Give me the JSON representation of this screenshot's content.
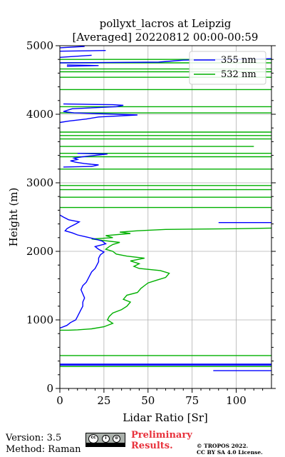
{
  "chart_data": {
    "type": "line",
    "title": "pollyxt_lacros at Leipzig",
    "subtitle": "[Averaged] 20220812 00:00-00:59",
    "xlabel": "Lidar Ratio [Sr]",
    "ylabel": "Height (m)",
    "xlim": [
      0,
      120
    ],
    "ylim": [
      0,
      5000
    ],
    "x_ticks": [
      0,
      25,
      50,
      75,
      100
    ],
    "x_tick_labels": [
      "0",
      "25",
      "50",
      "75",
      "100"
    ],
    "y_ticks": [
      0,
      1000,
      2000,
      3000,
      4000,
      5000
    ],
    "y_tick_labels": [
      "0",
      "1000",
      "2000",
      "3000",
      "4000",
      "5000"
    ],
    "grid": true,
    "legend_position": "top-right",
    "series": [
      {
        "name": "355 nm",
        "color": "#0000ff",
        "points": [
          [
            0,
            880
          ],
          [
            4,
            920
          ],
          [
            6,
            960
          ],
          [
            9,
            1000
          ],
          [
            10,
            1050
          ],
          [
            11,
            1100
          ],
          [
            12,
            1150
          ],
          [
            13,
            1200
          ],
          [
            13,
            1260
          ],
          [
            14,
            1320
          ],
          [
            13,
            1380
          ],
          [
            12,
            1440
          ],
          [
            13,
            1500
          ],
          [
            15,
            1550
          ],
          [
            16,
            1600
          ],
          [
            17,
            1650
          ],
          [
            18,
            1700
          ],
          [
            20,
            1750
          ],
          [
            21,
            1800
          ],
          [
            22,
            1850
          ],
          [
            22,
            1900
          ],
          [
            23,
            1950
          ],
          [
            25,
            1990
          ],
          [
            22,
            2030
          ],
          [
            20,
            2070
          ],
          [
            26,
            2110
          ],
          [
            24,
            2150
          ],
          [
            20,
            2180
          ],
          [
            15,
            2210
          ],
          [
            10,
            2240
          ],
          [
            7,
            2270
          ],
          [
            3,
            2300
          ],
          [
            4,
            2330
          ],
          [
            6,
            2360
          ],
          [
            9,
            2400
          ],
          [
            11,
            2430
          ],
          [
            5,
            2460
          ],
          [
            2,
            2500
          ],
          [
            0,
            2530
          ],
          [
            null,
            null
          ],
          [
            2,
            3230
          ],
          [
            18,
            3240
          ],
          [
            22,
            3260
          ],
          [
            14,
            3280
          ],
          [
            9,
            3300
          ],
          [
            6,
            3320
          ],
          [
            10,
            3340
          ],
          [
            8,
            3360
          ],
          [
            13,
            3380
          ],
          [
            27,
            3420
          ],
          [
            10,
            3430
          ],
          [
            null,
            null
          ],
          [
            0,
            3880
          ],
          [
            5,
            3900
          ],
          [
            15,
            3930
          ],
          [
            22,
            3960
          ],
          [
            44,
            3990
          ],
          [
            20,
            4010
          ],
          [
            8,
            4020
          ],
          [
            2,
            4040
          ],
          [
            7,
            4080
          ],
          [
            32,
            4110
          ],
          [
            36,
            4130
          ],
          [
            30,
            4140
          ],
          [
            2,
            4150
          ],
          [
            null,
            null
          ],
          [
            4,
            4700
          ],
          [
            22,
            4710
          ],
          [
            4,
            4720
          ],
          [
            null,
            null
          ],
          [
            0,
            4750
          ],
          [
            56,
            4760
          ],
          [
            70,
            4790
          ],
          [
            100,
            4800
          ],
          [
            120,
            4810
          ],
          [
            null,
            null
          ],
          [
            0,
            4830
          ],
          [
            18,
            4860
          ],
          [
            null,
            null
          ],
          [
            0,
            4920
          ],
          [
            26,
            4930
          ],
          [
            null,
            null
          ],
          [
            0,
            4970
          ],
          [
            14,
            4990
          ]
        ]
      },
      {
        "name": "532 nm",
        "color": "#00b000",
        "points": [
          [
            0,
            850
          ],
          [
            5,
            850
          ],
          [
            10,
            855
          ],
          [
            18,
            870
          ],
          [
            25,
            900
          ],
          [
            30,
            950
          ],
          [
            27,
            1000
          ],
          [
            28,
            1050
          ],
          [
            30,
            1100
          ],
          [
            35,
            1150
          ],
          [
            38,
            1200
          ],
          [
            40,
            1260
          ],
          [
            36,
            1300
          ],
          [
            38,
            1360
          ],
          [
            44,
            1400
          ],
          [
            46,
            1460
          ],
          [
            48,
            1500
          ],
          [
            50,
            1540
          ],
          [
            55,
            1580
          ],
          [
            60,
            1620
          ],
          [
            62,
            1680
          ],
          [
            57,
            1720
          ],
          [
            45,
            1750
          ],
          [
            42,
            1780
          ],
          [
            45,
            1820
          ],
          [
            40,
            1860
          ],
          [
            48,
            1900
          ],
          [
            38,
            1930
          ],
          [
            32,
            1960
          ],
          [
            30,
            2000
          ],
          [
            26,
            2030
          ],
          [
            28,
            2070
          ],
          [
            30,
            2100
          ],
          [
            34,
            2130
          ],
          [
            24,
            2160
          ],
          [
            18,
            2180
          ],
          [
            30,
            2200
          ],
          [
            26,
            2230
          ],
          [
            40,
            2260
          ],
          [
            34,
            2280
          ],
          [
            44,
            2300
          ],
          [
            60,
            2320
          ],
          [
            100,
            2330
          ],
          [
            120,
            2340
          ],
          [
            null,
            null
          ],
          [
            0,
            2640
          ],
          [
            120,
            2640
          ],
          [
            null,
            null
          ],
          [
            0,
            2790
          ],
          [
            120,
            2790
          ],
          [
            null,
            null
          ],
          [
            0,
            2900
          ],
          [
            120,
            2900
          ],
          [
            null,
            null
          ],
          [
            0,
            2960
          ],
          [
            120,
            2960
          ],
          [
            null,
            null
          ],
          [
            0,
            3200
          ],
          [
            120,
            3200
          ],
          [
            null,
            null
          ],
          [
            0,
            3380
          ],
          [
            120,
            3380
          ],
          [
            null,
            null
          ],
          [
            0,
            3430
          ],
          [
            120,
            3430
          ],
          [
            null,
            null
          ],
          [
            0,
            3530
          ],
          [
            110,
            3530
          ],
          [
            null,
            null
          ],
          [
            0,
            3640
          ],
          [
            120,
            3640
          ],
          [
            null,
            null
          ],
          [
            0,
            3690
          ],
          [
            120,
            3690
          ],
          [
            null,
            null
          ],
          [
            0,
            3740
          ],
          [
            120,
            3740
          ],
          [
            null,
            null
          ],
          [
            0,
            4020
          ],
          [
            120,
            4020
          ],
          [
            null,
            null
          ],
          [
            0,
            4110
          ],
          [
            120,
            4110
          ],
          [
            null,
            null
          ],
          [
            0,
            4360
          ],
          [
            120,
            4360
          ],
          [
            null,
            null
          ],
          [
            0,
            4540
          ],
          [
            120,
            4540
          ],
          [
            null,
            null
          ],
          [
            0,
            4620
          ],
          [
            120,
            4620
          ],
          [
            null,
            null
          ],
          [
            0,
            4660
          ],
          [
            120,
            4660
          ],
          [
            null,
            null
          ],
          [
            0,
            4750
          ],
          [
            120,
            4750
          ],
          [
            null,
            null
          ],
          [
            0,
            4800
          ],
          [
            120,
            4800
          ],
          [
            null,
            null
          ],
          [
            0,
            480
          ],
          [
            120,
            480
          ],
          [
            null,
            null
          ],
          [
            0,
            320
          ],
          [
            120,
            320
          ]
        ]
      }
    ],
    "hlines_355": [
      {
        "x0": 0,
        "x1": 120,
        "y": 340
      },
      {
        "x0": 0,
        "x1": 120,
        "y": 355
      },
      {
        "x0": 87,
        "x1": 120,
        "y": 260
      },
      {
        "x0": 90,
        "x1": 120,
        "y": 2420
      }
    ]
  },
  "footer": {
    "version": "Version: 3.5",
    "method": "Method: Raman",
    "preliminary_line1": "Preliminary",
    "preliminary_line2": "Results.",
    "copyright_line1": "© TROPOS 2022.",
    "copyright_line2": "CC BY SA 4.0 License.",
    "license_badge_lines": [
      "cc",
      "i",
      "⊚"
    ]
  }
}
